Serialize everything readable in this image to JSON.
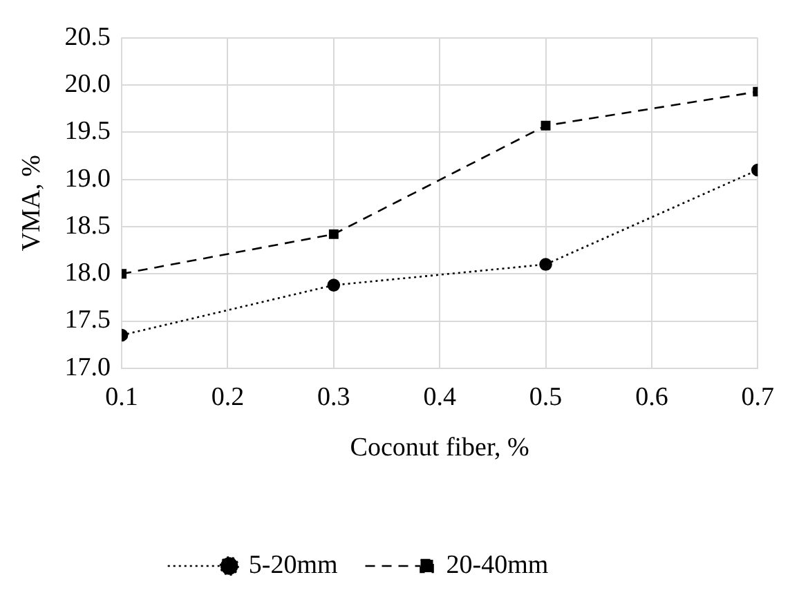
{
  "chart_data": {
    "type": "line",
    "xlabel": "Coconut fiber, %",
    "ylabel": "VMA, %",
    "xlim": [
      0.1,
      0.7
    ],
    "xticks": [
      0.1,
      0.2,
      0.3,
      0.4,
      0.5,
      0.6,
      0.7
    ],
    "ylim": [
      17.0,
      20.5
    ],
    "yticks": [
      {
        "value": 17,
        "label": "17.0"
      },
      17.5,
      {
        "value": 18,
        "label": "18.0"
      },
      18.5,
      {
        "value": 19,
        "label": "19.0"
      },
      19.5,
      {
        "value": 20,
        "label": "20.0"
      },
      20.5
    ],
    "x": [
      0.1,
      0.3,
      0.5,
      0.7
    ],
    "series": [
      {
        "name": "5-20mm",
        "color": "#000000",
        "values": [
          17.35,
          17.88,
          18.1,
          19.1
        ],
        "marker": "circle",
        "line_style": "dotted"
      },
      {
        "name": "20-40mm",
        "color": "#000000",
        "values": [
          18.0,
          18.42,
          19.57,
          19.93
        ],
        "marker": "square",
        "line_style": "dashed"
      }
    ],
    "grid": true,
    "legend": "bottom"
  }
}
